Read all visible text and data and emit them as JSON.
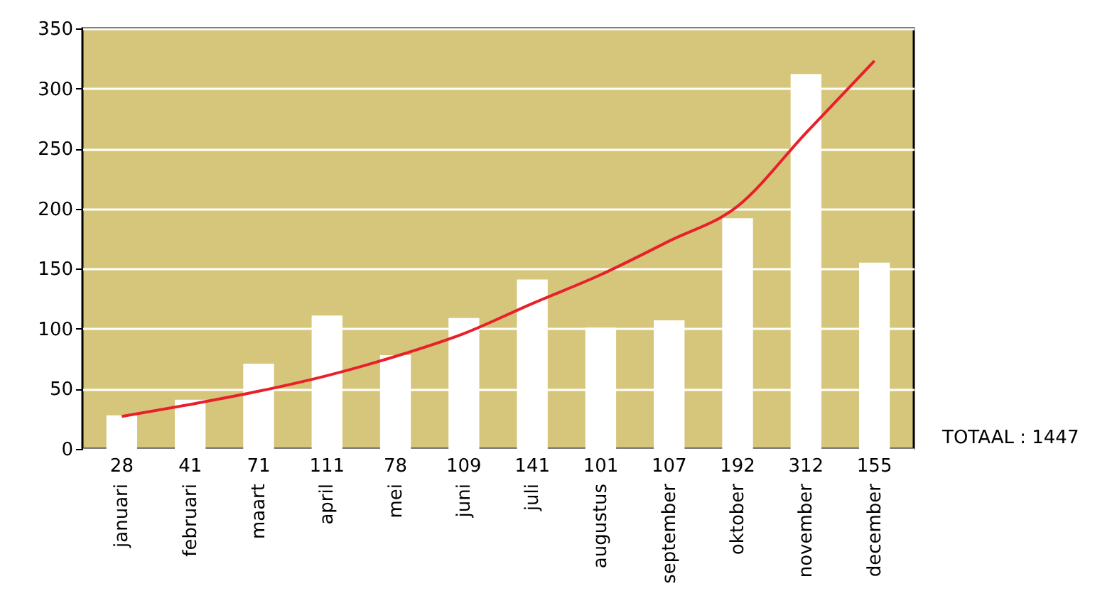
{
  "chart_data": {
    "type": "bar",
    "categories": [
      "januari",
      "februari",
      "maart",
      "april",
      "mei",
      "juni",
      "juli",
      "augustus",
      "september",
      "oktober",
      "november",
      "december"
    ],
    "series": [
      {
        "color": "#ffffff",
        "values": [
          28,
          41,
          71,
          111,
          78,
          109,
          141,
          101,
          107,
          192,
          312,
          155
        ],
        "value_labels": [
          "28",
          "41",
          "71",
          "111",
          "78",
          "109",
          "141",
          "101",
          "107",
          "192",
          "312",
          "155"
        ]
      },
      {
        "type": "line",
        "color": "#e8202a",
        "x": [
          "januari",
          "februari",
          "maart",
          "april",
          "mei",
          "juni",
          "juli",
          "augustus",
          "september",
          "oktober",
          "november",
          "december"
        ],
        "values": [
          27,
          37,
          48,
          61,
          77,
          96,
          121,
          145,
          173,
          202,
          263,
          323
        ]
      }
    ],
    "ylim": [
      0,
      350
    ],
    "yticks": [
      0,
      50,
      100,
      150,
      200,
      250,
      300,
      350
    ],
    "grid": "y",
    "marker": "none",
    "line_style": "solid",
    "annotations": [
      "TOTAAL : 1447"
    ]
  }
}
